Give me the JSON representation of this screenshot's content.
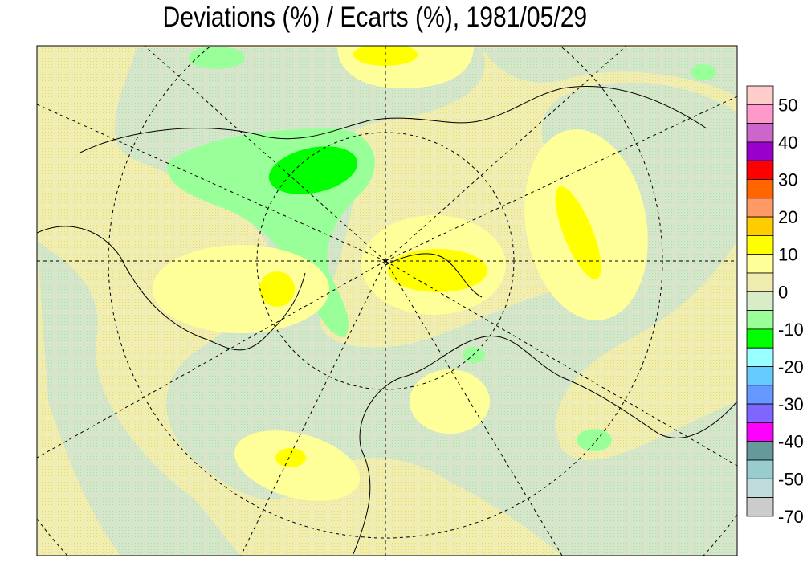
{
  "title": "Deviations (%) / Ecarts (%), 1981/05/29",
  "legend": {
    "colors": [
      "#ffcccc",
      "#ff99cc",
      "#cc66cc",
      "#9900cc",
      "#ff0000",
      "#ff6600",
      "#ff9966",
      "#ffcc00",
      "#ffff00",
      "#ffff99",
      "#f0ecb0",
      "#d8ecc8",
      "#99ff99",
      "#00ff00",
      "#99ffff",
      "#66ccff",
      "#6699ff",
      "#8066ff",
      "#ff00ff",
      "#669999",
      "#99cccc",
      "#c0dcdc",
      "#cccccc"
    ],
    "labels": [
      "50",
      "40",
      "30",
      "20",
      "10",
      "0",
      "-10",
      "-20",
      "-30",
      "-40",
      "-50",
      "-70"
    ]
  }
}
